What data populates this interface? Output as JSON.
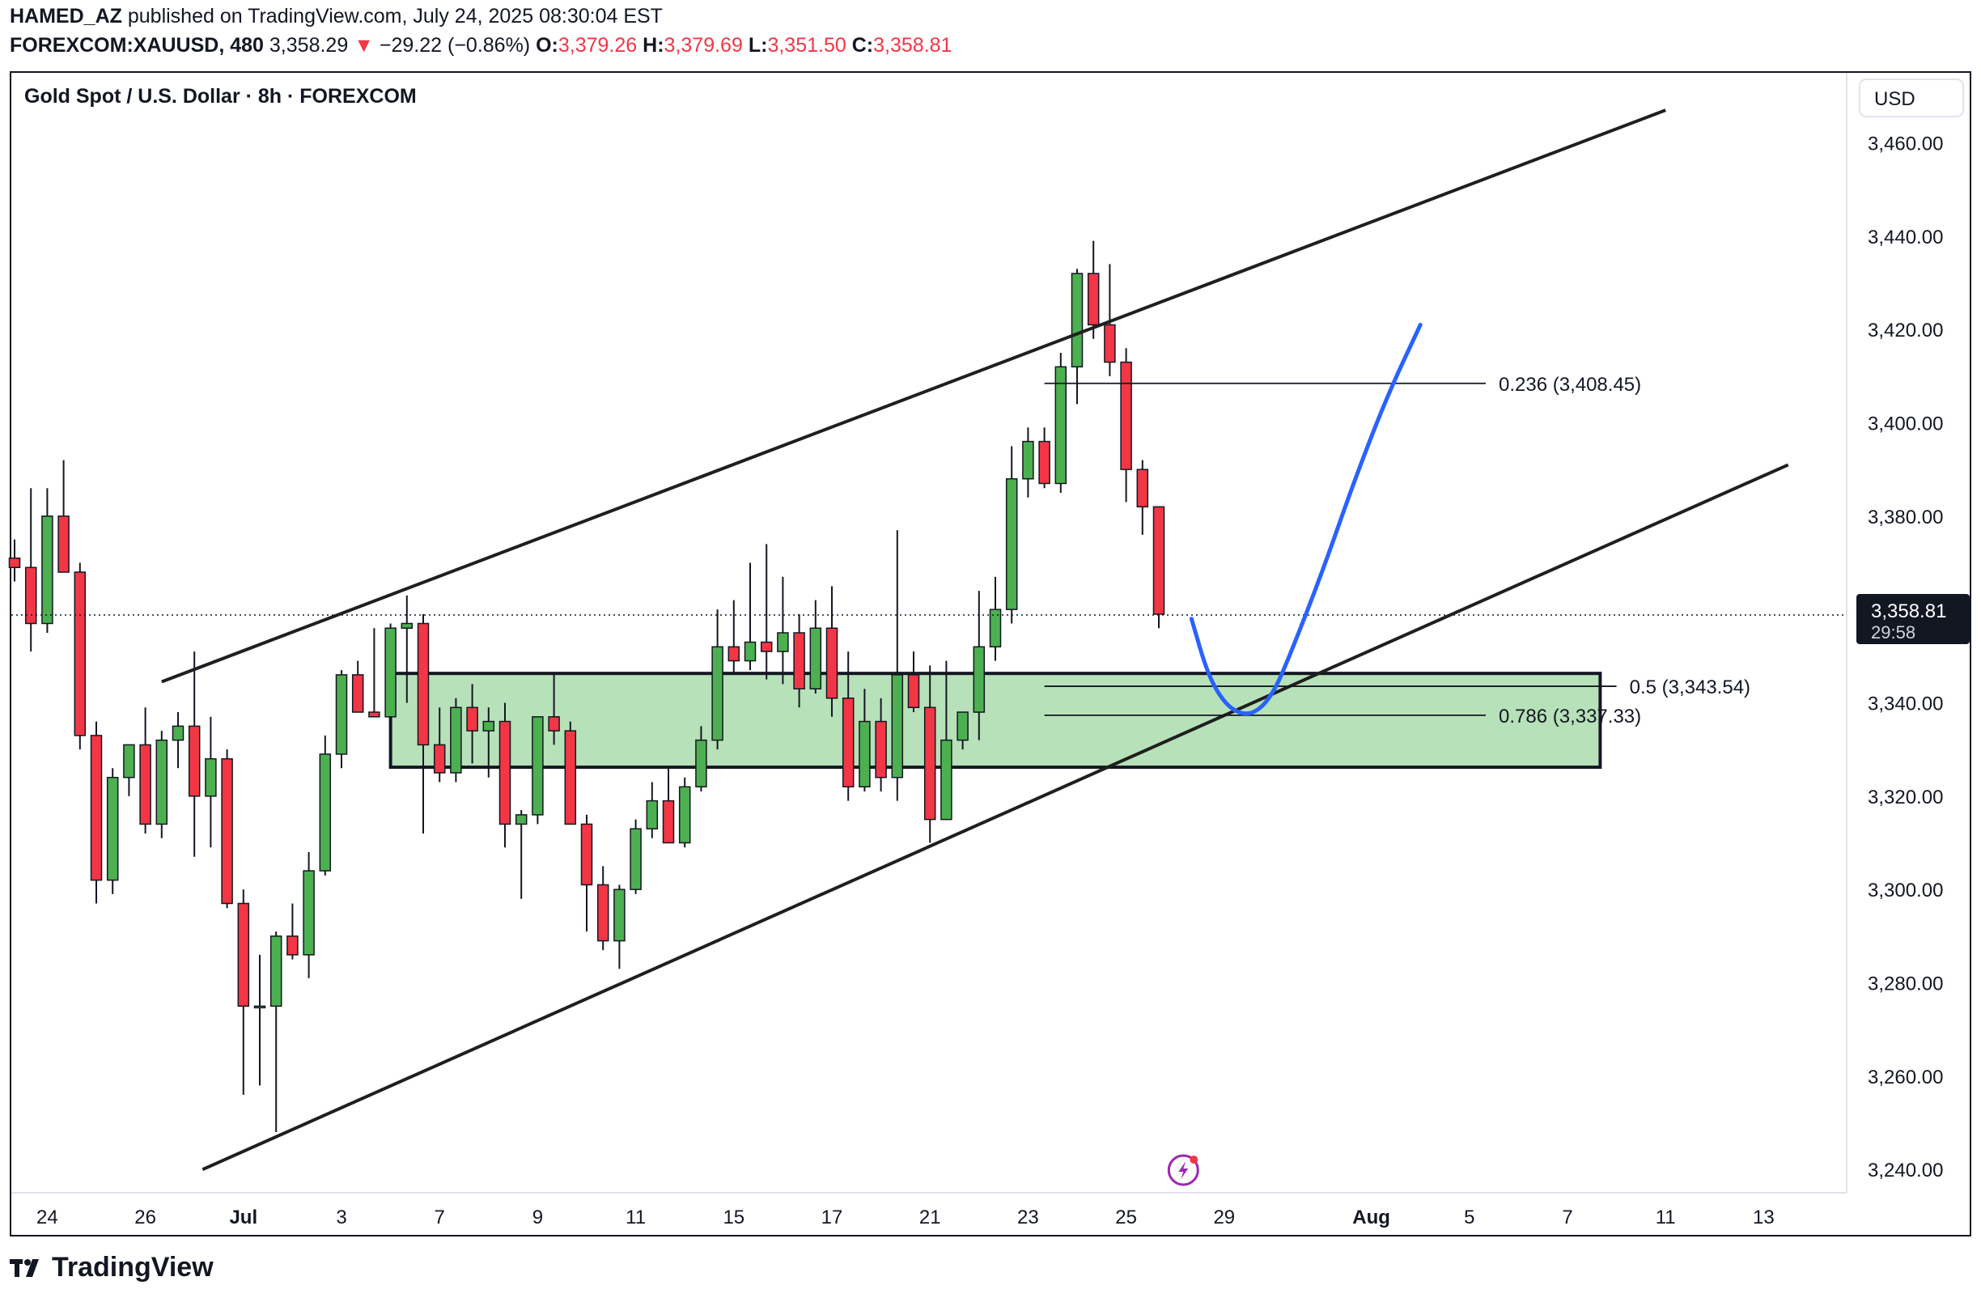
{
  "header": {
    "author": "HAMED_AZ",
    "published_text": "published on TradingView.com, July 24, 2025 08:30:04 EST",
    "symbol": "FOREXCOM:XAUUSD, 480",
    "last_price": "3,358.29",
    "change_arrow": "▼",
    "change": "−29.22 (−0.86%)",
    "open_label": "O:",
    "open": "3,379.26",
    "high_label": "H:",
    "high": "3,379.69",
    "low_label": "L:",
    "low": "3,351.50",
    "close_label": "C:",
    "close": "3,358.81"
  },
  "brand": {
    "name": "TradingView"
  },
  "chart_data": {
    "type": "candlestick",
    "title": "Gold Spot / U.S. Dollar · 8h · FOREXCOM",
    "currency": "USD",
    "ylim": [
      3235,
      3475
    ],
    "y_ticks": [
      3240,
      3260,
      3280,
      3300,
      3320,
      3340,
      3360,
      3380,
      3400,
      3420,
      3440,
      3460
    ],
    "y_tick_labels": [
      "3,240.00",
      "3,260.00",
      "3,280.00",
      "3,300.00",
      "3,320.00",
      "3,340.00",
      "3,360.00",
      "3,380.00",
      "3,400.00",
      "3,420.00",
      "3,440.00",
      "3,460.00"
    ],
    "x_ticks": [
      {
        "label": "24",
        "index": 2
      },
      {
        "label": "26",
        "index": 8
      },
      {
        "label": "Jul",
        "index": 14
      },
      {
        "label": "3",
        "index": 20
      },
      {
        "label": "7",
        "index": 26
      },
      {
        "label": "9",
        "index": 32
      },
      {
        "label": "11",
        "index": 38
      },
      {
        "label": "15",
        "index": 44
      },
      {
        "label": "17",
        "index": 50
      },
      {
        "label": "21",
        "index": 56
      },
      {
        "label": "23",
        "index": 62
      },
      {
        "label": "25",
        "index": 68
      },
      {
        "label": "29",
        "index": 74
      },
      {
        "label": "Aug",
        "index": 83
      },
      {
        "label": "5",
        "index": 89
      },
      {
        "label": "7",
        "index": 95
      },
      {
        "label": "11",
        "index": 101
      },
      {
        "label": "13",
        "index": 107
      }
    ],
    "last_price_label": "3,358.81",
    "countdown_label": "29:58",
    "last_price": 3358.81,
    "candles": [
      [
        3371,
        3375,
        3366,
        3369
      ],
      [
        3369,
        3386,
        3351,
        3357
      ],
      [
        3357,
        3386,
        3355,
        3380
      ],
      [
        3380,
        3392,
        3368,
        3368
      ],
      [
        3368,
        3370,
        3330,
        3333
      ],
      [
        3333,
        3336,
        3297,
        3302
      ],
      [
        3302,
        3326,
        3299,
        3324
      ],
      [
        3324,
        3330,
        3320,
        3331
      ],
      [
        3331,
        3339,
        3312,
        3314
      ],
      [
        3314,
        3334,
        3311,
        3332
      ],
      [
        3332,
        3338,
        3326,
        3335
      ],
      [
        3335,
        3351,
        3307,
        3320
      ],
      [
        3320,
        3337,
        3309,
        3328
      ],
      [
        3328,
        3330,
        3296,
        3297
      ],
      [
        3297,
        3300,
        3256,
        3275
      ],
      [
        3275,
        3286,
        3258,
        3275
      ],
      [
        3275,
        3291,
        3248,
        3290
      ],
      [
        3290,
        3297,
        3285,
        3286
      ],
      [
        3286,
        3308,
        3281,
        3304
      ],
      [
        3304,
        3333,
        3303,
        3329
      ],
      [
        3329,
        3347,
        3326,
        3346
      ],
      [
        3346,
        3349,
        3338,
        3338
      ],
      [
        3338,
        3356,
        3338,
        3337
      ],
      [
        3337,
        3357,
        3336,
        3356
      ],
      [
        3356,
        3363,
        3340,
        3357
      ],
      [
        3357,
        3359,
        3312,
        3331
      ],
      [
        3331,
        3339,
        3323,
        3325
      ],
      [
        3325,
        3341,
        3323,
        3339
      ],
      [
        3339,
        3344,
        3327,
        3334
      ],
      [
        3334,
        3339,
        3324,
        3336
      ],
      [
        3336,
        3340,
        3309,
        3314
      ],
      [
        3314,
        3317,
        3298,
        3316
      ],
      [
        3316,
        3337,
        3314,
        3337
      ],
      [
        3337,
        3346,
        3331,
        3334
      ],
      [
        3334,
        3336,
        3314,
        3314
      ],
      [
        3314,
        3316,
        3291,
        3301
      ],
      [
        3301,
        3305,
        3287,
        3289
      ],
      [
        3289,
        3301,
        3283,
        3300
      ],
      [
        3300,
        3315,
        3299,
        3313
      ],
      [
        3313,
        3323,
        3311,
        3319
      ],
      [
        3319,
        3326,
        3310,
        3310
      ],
      [
        3310,
        3324,
        3309,
        3322
      ],
      [
        3322,
        3335,
        3321,
        3332
      ],
      [
        3332,
        3360,
        3330,
        3352
      ],
      [
        3352,
        3362,
        3346,
        3349
      ],
      [
        3349,
        3370,
        3347,
        3353
      ],
      [
        3353,
        3374,
        3345,
        3351
      ],
      [
        3351,
        3367,
        3344,
        3355
      ],
      [
        3355,
        3359,
        3339,
        3343
      ],
      [
        3343,
        3362,
        3342,
        3356
      ],
      [
        3356,
        3365,
        3337,
        3341
      ],
      [
        3341,
        3351,
        3319,
        3322
      ],
      [
        3322,
        3343,
        3321,
        3336
      ],
      [
        3336,
        3341,
        3321,
        3324
      ],
      [
        3324,
        3377,
        3319,
        3346
      ],
      [
        3346,
        3351,
        3338,
        3339
      ],
      [
        3339,
        3348,
        3310,
        3315
      ],
      [
        3315,
        3349,
        3317,
        3332
      ],
      [
        3332,
        3338,
        3330,
        3338
      ],
      [
        3338,
        3364,
        3332,
        3352
      ],
      [
        3352,
        3367,
        3349,
        3360
      ],
      [
        3360,
        3395,
        3357,
        3388
      ],
      [
        3388,
        3399,
        3384,
        3396
      ],
      [
        3396,
        3399,
        3386,
        3387
      ],
      [
        3387,
        3415,
        3385,
        3412
      ],
      [
        3412,
        3433,
        3404,
        3432
      ],
      [
        3432,
        3439,
        3418,
        3421
      ],
      [
        3421,
        3434,
        3410,
        3413
      ],
      [
        3413,
        3416,
        3383,
        3390
      ],
      [
        3390,
        3392,
        3376,
        3382
      ],
      [
        3382,
        3382,
        3356,
        3359
      ]
    ],
    "channel": {
      "upper": [
        {
          "i": 9,
          "p": 3344.5
        },
        {
          "i": 101,
          "p": 3467
        }
      ],
      "lower": [
        {
          "i": 11.5,
          "p": 3240
        },
        {
          "i": 108.5,
          "p": 3391
        }
      ]
    },
    "zone": {
      "i1": 23,
      "i2": 97,
      "p_top": 3346.3,
      "p_bottom": 3326.2
    },
    "fib_levels": [
      {
        "ratio": "0.236",
        "price": 3408.45,
        "label": "0.236 (3,408.45)",
        "i1": 63,
        "i2": 90
      },
      {
        "ratio": "0.5",
        "price": 3343.54,
        "label": "0.5 (3,343.54)",
        "i1": 63,
        "i2": 98
      },
      {
        "ratio": "0.786",
        "price": 3337.33,
        "label": "0.786 (3,337.33)",
        "i1": 63,
        "i2": 90
      }
    ],
    "projection_path": [
      [
        72,
        3358
      ],
      [
        73,
        3346
      ],
      [
        74,
        3340
      ],
      [
        75,
        3337.5
      ],
      [
        76,
        3338
      ],
      [
        77,
        3342
      ],
      [
        78,
        3350
      ],
      [
        80,
        3368
      ],
      [
        82,
        3388
      ],
      [
        84,
        3406
      ],
      [
        86,
        3421
      ]
    ],
    "colors": {
      "up": "#4caf50",
      "down": "#f23645",
      "projection": "#2962ff",
      "zone_fill": "#b7e1b8",
      "channel": "#1f1f1f",
      "marker": "#9c27b0"
    }
  }
}
